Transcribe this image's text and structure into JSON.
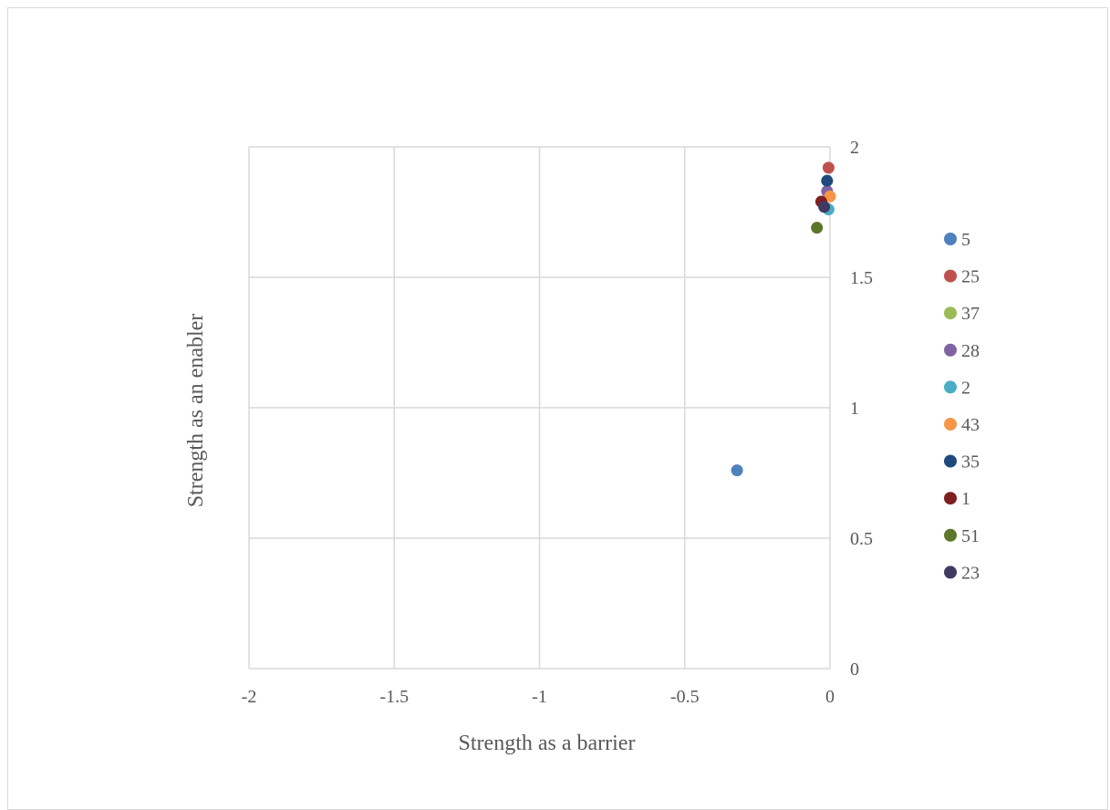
{
  "chart_data": {
    "type": "scatter",
    "title": "",
    "xlabel": "Strength as a barrier",
    "ylabel": "Strength as an enabler",
    "xlim": [
      -2,
      0
    ],
    "ylim": [
      0,
      2
    ],
    "x_ticks": [
      "-2",
      "-1.5",
      "-1",
      "-0.5",
      "0"
    ],
    "y_ticks": [
      "0",
      "0.5",
      "1",
      "1.5",
      "2"
    ],
    "grid": true,
    "y_axis_position": "right",
    "legend_placement": "right",
    "series": [
      {
        "name": "5",
        "color": "#4F81BD",
        "points": [
          {
            "x": -0.32,
            "y": 0.76
          }
        ]
      },
      {
        "name": "25",
        "color": "#C0504D",
        "points": [
          {
            "x": -0.005,
            "y": 1.92
          }
        ]
      },
      {
        "name": "37",
        "color": "#9BBB59",
        "points": []
      },
      {
        "name": "28",
        "color": "#8064A2",
        "points": [
          {
            "x": -0.01,
            "y": 1.83
          }
        ]
      },
      {
        "name": "2",
        "color": "#4BACC6",
        "points": [
          {
            "x": -0.005,
            "y": 1.76
          }
        ]
      },
      {
        "name": "43",
        "color": "#F79646",
        "points": [
          {
            "x": 0.0,
            "y": 1.81
          }
        ]
      },
      {
        "name": "35",
        "color": "#1F497D",
        "points": [
          {
            "x": -0.01,
            "y": 1.87
          }
        ]
      },
      {
        "name": "1",
        "color": "#7F1F1F",
        "points": [
          {
            "x": -0.03,
            "y": 1.79
          }
        ]
      },
      {
        "name": "51",
        "color": "#5E762B",
        "points": [
          {
            "x": -0.045,
            "y": 1.69
          }
        ]
      },
      {
        "name": "23",
        "color": "#403A63",
        "points": [
          {
            "x": -0.02,
            "y": 1.77
          }
        ]
      }
    ]
  }
}
